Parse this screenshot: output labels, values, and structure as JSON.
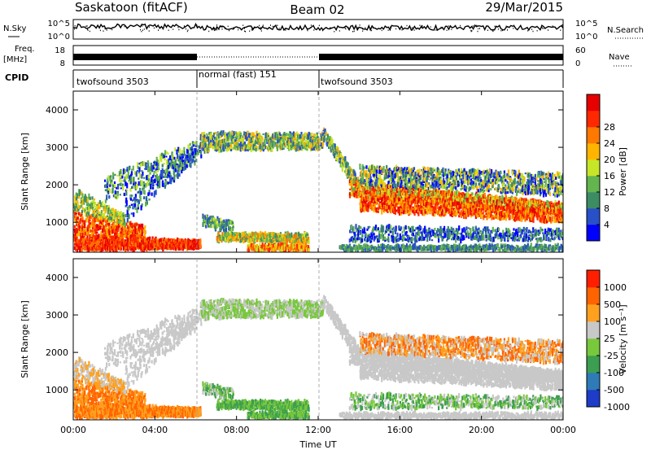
{
  "header": {
    "station": "Saskatoon (fitACF)",
    "beam": "Beam 02",
    "date": "29/Mar/2015"
  },
  "left_labels": {
    "nsky": "N.Sky",
    "freq_line1": "Freq.",
    "freq_line2": "[MHz]",
    "cpid": "CPID"
  },
  "right_labels": {
    "nsearch": "N.Search",
    "nave": "Nave"
  },
  "colors": {
    "power_scale": [
      "#0000ff",
      "#2850c8",
      "#3c8c64",
      "#64b450",
      "#c8e628",
      "#ffb400",
      "#ff7800",
      "#ff2800",
      "#e60000"
    ],
    "velocity_scale": [
      "#1e3cc8",
      "#2e7bb8",
      "#3c9e50",
      "#78c83c",
      "#c8c8c8",
      "#ffa01e",
      "#ff6400",
      "#ff1e00"
    ]
  },
  "chart_data": [
    {
      "type": "line",
      "panel": "noise",
      "left_axis": {
        "label": "N.Sky",
        "ticks": [
          "10^5",
          "10^0"
        ]
      },
      "right_axis": {
        "label": "N.Search",
        "ticks": [
          "10^5",
          "10^0"
        ]
      },
      "x_range_hours": [
        0,
        24
      ]
    },
    {
      "type": "line",
      "panel": "frequency",
      "left_axis": {
        "label": "Freq. [MHz]",
        "ticks": [
          "18",
          "8"
        ]
      },
      "right_axis": {
        "label": "Nave",
        "ticks": [
          "60",
          "0"
        ]
      },
      "x_range_hours": [
        0,
        24
      ]
    },
    {
      "type": "table",
      "panel": "cpid",
      "label": "CPID",
      "segments": [
        {
          "name": "twofsound 3503",
          "start_h": 0,
          "end_h": 6
        },
        {
          "name": "normal (fast) 151",
          "start_h": 6,
          "end_h": 12
        },
        {
          "name": "twofsound 3503",
          "start_h": 12,
          "end_h": 24
        }
      ]
    },
    {
      "type": "heatmap",
      "panel": "power",
      "ylabel": "Slant Range [km]",
      "yticks": [
        1000,
        2000,
        3000,
        4000
      ],
      "ylim": [
        200,
        4500
      ],
      "xlim_hours": [
        0,
        24
      ],
      "colorbar": {
        "label": "Power [dB]",
        "ticks": [
          4,
          8,
          12,
          16,
          20,
          24,
          28
        ]
      }
    },
    {
      "type": "heatmap",
      "panel": "velocity",
      "ylabel": "Slant Range [km]",
      "yticks": [
        1000,
        2000,
        3000,
        4000
      ],
      "ylim": [
        200,
        4500
      ],
      "xlim_hours": [
        0,
        24
      ],
      "xlabel": "Time UT",
      "xticks": [
        "00:00",
        "04:00",
        "08:00",
        "12:00",
        "16:00",
        "20:00",
        "00:00"
      ],
      "colorbar": {
        "label": "Velocity [m s⁻¹]",
        "ticks": [
          1000,
          500,
          100,
          25,
          -25,
          -100,
          -500,
          -1000
        ]
      }
    }
  ]
}
